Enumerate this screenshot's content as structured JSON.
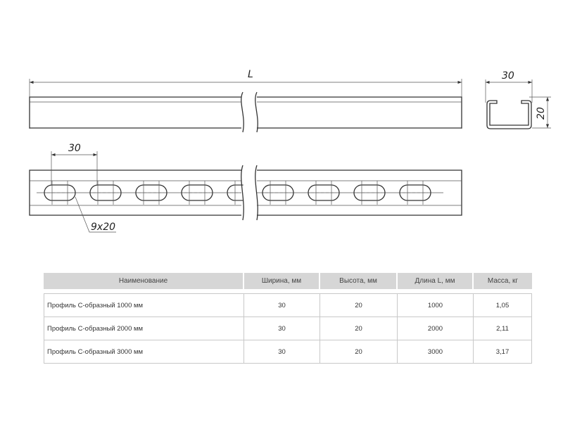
{
  "drawing": {
    "length_label": "L",
    "pitch_label": "30",
    "slot_label": "9x20",
    "section_width_label": "30",
    "section_height_label": "20"
  },
  "table": {
    "headers": [
      "Наименование",
      "Ширина, мм",
      "Высота, мм",
      "Длина L, мм",
      "Масса, кг"
    ],
    "rows": [
      [
        "Профиль С-образный 1000 мм",
        "30",
        "20",
        "1000",
        "1,05"
      ],
      [
        "Профиль С-образный 2000 мм",
        "30",
        "20",
        "2000",
        "2,11"
      ],
      [
        "Профиль С-образный 3000 мм",
        "30",
        "20",
        "3000",
        "3,17"
      ]
    ]
  }
}
